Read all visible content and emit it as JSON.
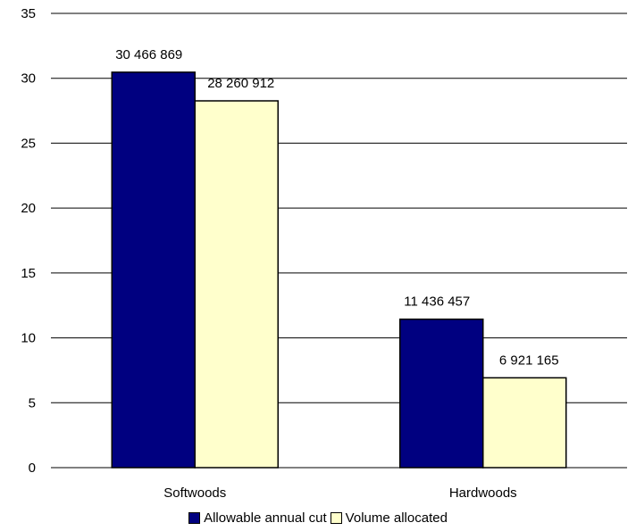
{
  "chart_data": {
    "type": "bar",
    "categories": [
      "Softwoods",
      "Hardwoods"
    ],
    "series": [
      {
        "name": "Allowable annual cut",
        "color": "#000080",
        "values": [
          30.466869,
          11.436457
        ],
        "labels": [
          "30 466 869",
          "11 436 457"
        ]
      },
      {
        "name": "Volume allocated",
        "color": "#FFFFCC",
        "values": [
          28.260912,
          6.921165
        ],
        "labels": [
          "28 260 912",
          "6 921 165"
        ]
      }
    ],
    "y_ticks": [
      "0",
      "5",
      "10",
      "15",
      "20",
      "25",
      "30",
      "35"
    ],
    "ylim": [
      0,
      35
    ],
    "grid": true,
    "legend_position": "bottom"
  }
}
